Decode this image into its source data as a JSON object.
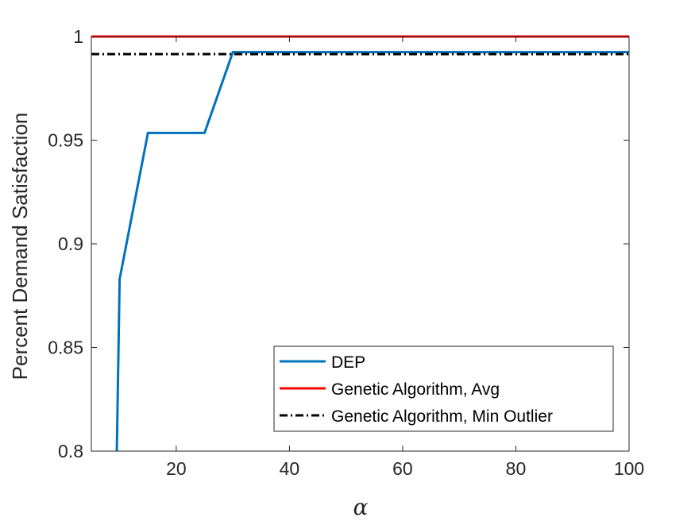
{
  "chart_data": {
    "type": "line",
    "title": "",
    "xlabel": "α",
    "ylabel": "Percent Demand Satisfaction",
    "xlim": [
      5,
      100
    ],
    "ylim": [
      0.8,
      1.0
    ],
    "xticks": [
      20,
      40,
      60,
      80,
      100
    ],
    "yticks": [
      0.8,
      0.85,
      0.9,
      0.95,
      1.0
    ],
    "ytick_labels": [
      "0.8",
      "0.85",
      "0.9",
      "0.95",
      "1"
    ],
    "xtick_labels": [
      "20",
      "40",
      "60",
      "80",
      "100"
    ],
    "grid": false,
    "legend_position": "bottom-right",
    "series": [
      {
        "name": "DEP",
        "color": "#0072BD",
        "style": "solid",
        "x": [
          9.5,
          10,
          15,
          25,
          30,
          100
        ],
        "y": [
          0.8,
          0.883,
          0.9535,
          0.9535,
          0.9925,
          0.9925
        ]
      },
      {
        "name": "Genetic Algorithm, Avg",
        "color": "#FF0000",
        "style": "solid",
        "x": [
          5,
          100
        ],
        "y": [
          1.0,
          1.0
        ]
      },
      {
        "name": "Genetic Algorithm, Min Outlier",
        "color": "#000000",
        "style": "dashdot",
        "x": [
          5,
          100
        ],
        "y": [
          0.9915,
          0.9915
        ]
      }
    ]
  }
}
